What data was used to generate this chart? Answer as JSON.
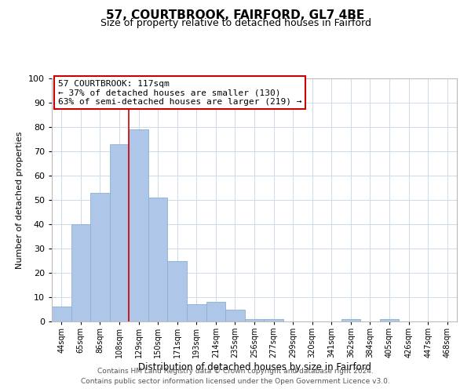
{
  "title": "57, COURTBROOK, FAIRFORD, GL7 4BE",
  "subtitle": "Size of property relative to detached houses in Fairford",
  "xlabel": "Distribution of detached houses by size in Fairford",
  "ylabel": "Number of detached properties",
  "bin_labels": [
    "44sqm",
    "65sqm",
    "86sqm",
    "108sqm",
    "129sqm",
    "150sqm",
    "171sqm",
    "193sqm",
    "214sqm",
    "235sqm",
    "256sqm",
    "277sqm",
    "299sqm",
    "320sqm",
    "341sqm",
    "362sqm",
    "384sqm",
    "405sqm",
    "426sqm",
    "447sqm",
    "468sqm"
  ],
  "bar_values": [
    6,
    40,
    53,
    73,
    79,
    51,
    25,
    7,
    8,
    5,
    1,
    1,
    0,
    0,
    0,
    1,
    0,
    1,
    0,
    0,
    0
  ],
  "bar_color": "#aec6e8",
  "bar_edgecolor": "#8ab0d0",
  "ylim": [
    0,
    100
  ],
  "yticks": [
    0,
    10,
    20,
    30,
    40,
    50,
    60,
    70,
    80,
    90,
    100
  ],
  "vline_x": 3.5,
  "annotation_title": "57 COURTBROOK: 117sqm",
  "annotation_line1": "← 37% of detached houses are smaller (130)",
  "annotation_line2": "63% of semi-detached houses are larger (219) →",
  "annotation_box_facecolor": "#ffffff",
  "annotation_box_edgecolor": "#cc0000",
  "vline_color": "#cc0000",
  "footnote1": "Contains HM Land Registry data © Crown copyright and database right 2024.",
  "footnote2": "Contains public sector information licensed under the Open Government Licence v3.0.",
  "background_color": "#ffffff",
  "grid_color": "#ccdaeb"
}
